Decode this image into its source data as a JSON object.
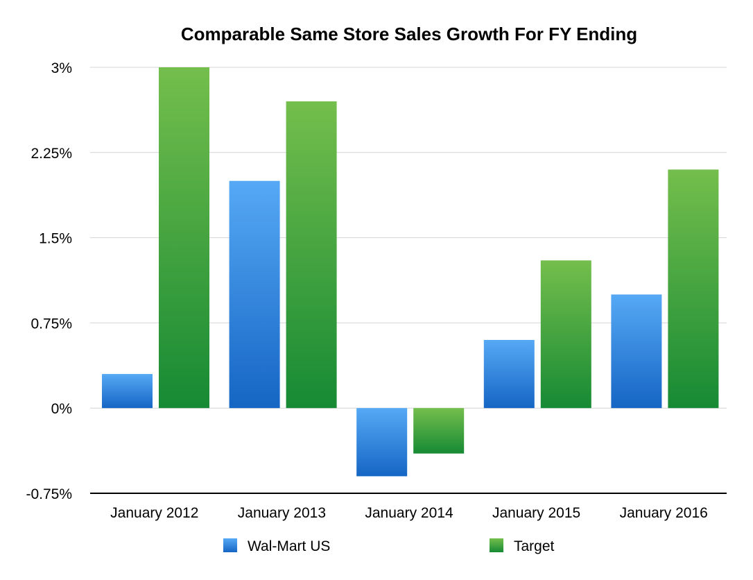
{
  "chart_data": {
    "type": "bar",
    "title": "Comparable Same Store Sales Growth For FY Ending",
    "xlabel": "",
    "ylabel": "",
    "categories": [
      "January 2012",
      "January 2013",
      "January 2014",
      "January 2015",
      "January 2016"
    ],
    "series": [
      {
        "name": "Wal-Mart US",
        "values": [
          0.3,
          2.0,
          -0.6,
          0.6,
          1.0
        ],
        "color_top": "#56a9f5",
        "color_bottom": "#1565c4"
      },
      {
        "name": "Target",
        "values": [
          3.0,
          2.7,
          -0.4,
          1.3,
          2.1
        ],
        "color_top": "#74be4c",
        "color_bottom": "#168a34"
      }
    ],
    "ylim": [
      -0.75,
      3
    ],
    "yticks": [
      -0.75,
      0,
      0.75,
      1.5,
      2.25,
      3
    ],
    "ytick_labels": [
      "-0.75%",
      "0%",
      "0.75%",
      "1.5%",
      "2.25%",
      "3%"
    ],
    "grid": true,
    "legend_position": "bottom"
  }
}
